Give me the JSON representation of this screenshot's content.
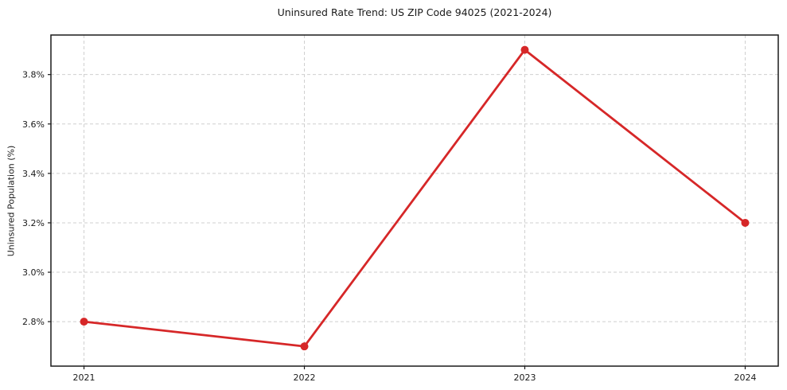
{
  "chart_data": {
    "type": "line",
    "title": "Uninsured Rate Trend: US ZIP Code 94025 (2021-2024)",
    "xlabel": "",
    "ylabel": "Uninsured Population (%)",
    "x": [
      2021,
      2022,
      2023,
      2024
    ],
    "values": [
      2.8,
      2.7,
      3.9,
      3.2
    ],
    "xtick_labels": [
      "2021",
      "2022",
      "2023",
      "2024"
    ],
    "ytick_values": [
      2.8,
      3.0,
      3.2,
      3.4,
      3.6,
      3.8
    ],
    "ytick_labels": [
      "2.8%",
      "3.0%",
      "3.2%",
      "3.4%",
      "3.6%",
      "3.8%"
    ],
    "xlim": [
      2020.85,
      2024.15
    ],
    "ylim": [
      2.62,
      3.96
    ],
    "grid": true,
    "grid_style": "dashed",
    "legend": "none",
    "marker": "circle",
    "colors": {
      "line": "#d62728",
      "marker": "#d62728",
      "grid": "#cfcfcf",
      "axis": "#1a1a1a",
      "text": "#1a1a1a",
      "background": "#ffffff"
    }
  }
}
